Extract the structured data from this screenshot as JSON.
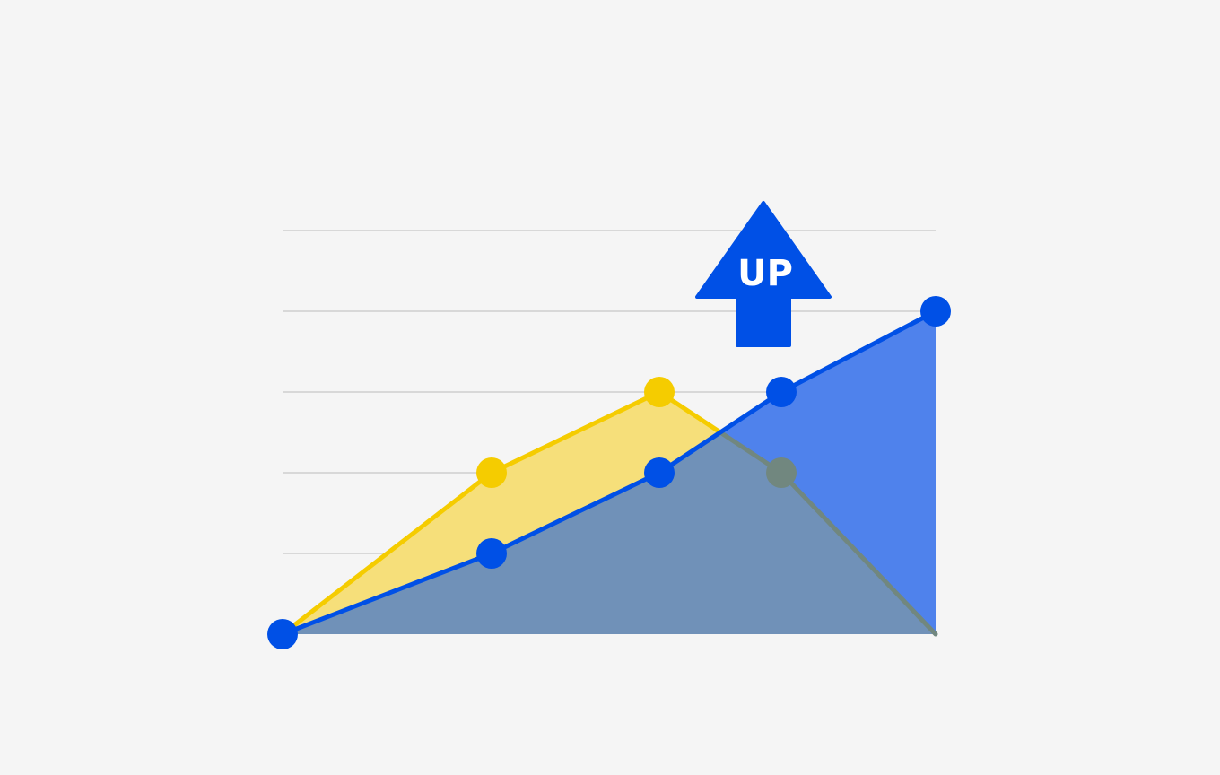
{
  "chart_data": {
    "type": "area",
    "grid": true,
    "legend": "none",
    "x": [
      0,
      1,
      2,
      3,
      4
    ],
    "ylim": [
      0,
      5
    ],
    "series": [
      {
        "color": "#f5cc00",
        "fill": "#f6df7a",
        "values": [
          0,
          2,
          3,
          2,
          0
        ],
        "marker_points": [
          1,
          2,
          3
        ]
      },
      {
        "color": "#0050e6",
        "fill": "#4f82ec",
        "values": [
          0,
          1,
          2,
          3,
          4
        ],
        "marker_points": [
          0,
          1,
          2,
          3,
          4
        ]
      }
    ],
    "overlap_fill": "#7091b8",
    "overlap_marker_color": "#71877f"
  },
  "badge": {
    "text": "UP",
    "color": "#0050e6",
    "icon": "up-arrow-icon"
  }
}
